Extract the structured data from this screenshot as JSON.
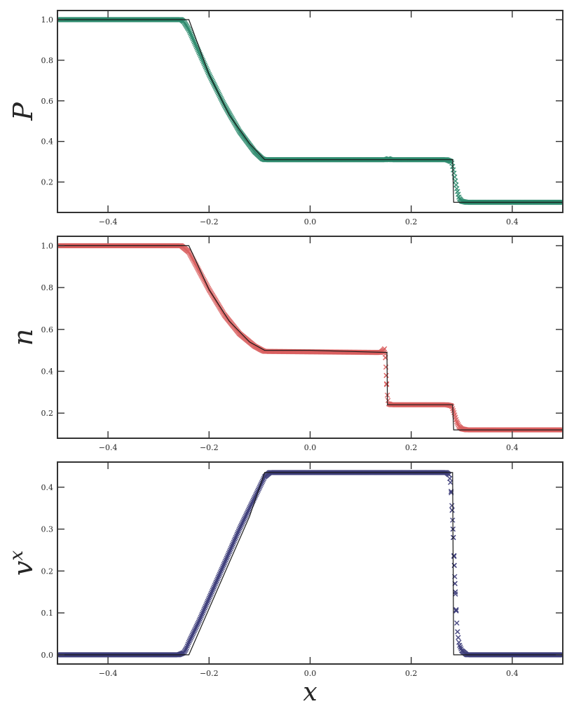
{
  "chart_data": [
    {
      "type": "scatter",
      "ylabel": "P",
      "xlabel": "",
      "xlim": [
        -0.5,
        0.5
      ],
      "ylim": [
        0.05,
        1.045
      ],
      "grid": false,
      "xticks": [
        -0.4,
        -0.2,
        0.0,
        0.2,
        0.4
      ],
      "xtick_labels": [
        "−0.4",
        "−0.2",
        "0.0",
        "0.2",
        "0.4"
      ],
      "yticks": [
        0.2,
        0.4,
        0.6,
        0.8,
        1.0
      ],
      "ytick_labels": [
        "0.2",
        "0.4",
        "0.6",
        "0.8",
        "1.0"
      ],
      "color": "#2e8b6e",
      "exact_color": "#1a1a1a",
      "exact": {
        "x": [
          -0.5,
          -0.24,
          -0.2,
          -0.16,
          -0.12,
          -0.09,
          0.0,
          0.282,
          0.284,
          0.5
        ],
        "y": [
          1.0,
          1.0,
          0.73,
          0.53,
          0.39,
          0.31,
          0.31,
          0.31,
          0.1,
          0.1
        ]
      },
      "numerical": {
        "x": [
          -0.5,
          -0.255,
          -0.25,
          -0.24,
          -0.22,
          -0.2,
          -0.17,
          -0.14,
          -0.11,
          -0.095,
          -0.09,
          0.15,
          0.155,
          0.16,
          0.27,
          0.28,
          0.285,
          0.29,
          0.295,
          0.3,
          0.31,
          0.5
        ],
        "y": [
          1.0,
          1.0,
          0.99,
          0.95,
          0.84,
          0.73,
          0.58,
          0.45,
          0.35,
          0.315,
          0.31,
          0.31,
          0.315,
          0.31,
          0.31,
          0.3,
          0.24,
          0.17,
          0.12,
          0.105,
          0.1,
          0.1
        ]
      }
    },
    {
      "type": "scatter",
      "ylabel": "n",
      "xlabel": "",
      "xlim": [
        -0.5,
        0.5
      ],
      "ylim": [
        0.08,
        1.045
      ],
      "grid": false,
      "xticks": [
        -0.4,
        -0.2,
        0.0,
        0.2,
        0.4
      ],
      "xtick_labels": [
        "−0.4",
        "−0.2",
        "0.0",
        "0.2",
        "0.4"
      ],
      "yticks": [
        0.2,
        0.4,
        0.6,
        0.8,
        1.0
      ],
      "ytick_labels": [
        "0.2",
        "0.4",
        "0.6",
        "0.8",
        "1.0"
      ],
      "color": "#d95f5f",
      "exact_color": "#1a1a1a",
      "exact": {
        "x": [
          -0.5,
          -0.24,
          -0.2,
          -0.16,
          -0.12,
          -0.09,
          0.0,
          0.152,
          0.153,
          0.282,
          0.284,
          0.5
        ],
        "y": [
          1.0,
          1.0,
          0.79,
          0.64,
          0.54,
          0.5,
          0.5,
          0.49,
          0.24,
          0.24,
          0.12,
          0.12
        ]
      },
      "numerical": {
        "x": [
          -0.5,
          -0.255,
          -0.25,
          -0.24,
          -0.22,
          -0.2,
          -0.17,
          -0.14,
          -0.11,
          -0.095,
          -0.09,
          0.13,
          0.14,
          0.145,
          0.148,
          0.15,
          0.152,
          0.155,
          0.16,
          0.27,
          0.28,
          0.285,
          0.29,
          0.295,
          0.3,
          0.31,
          0.5
        ],
        "y": [
          1.0,
          1.0,
          0.99,
          0.97,
          0.88,
          0.79,
          0.67,
          0.58,
          0.52,
          0.5,
          0.495,
          0.49,
          0.49,
          0.5,
          0.51,
          0.42,
          0.3,
          0.245,
          0.24,
          0.24,
          0.235,
          0.2,
          0.16,
          0.135,
          0.125,
          0.12,
          0.12
        ]
      }
    },
    {
      "type": "scatter",
      "ylabel": "v^x",
      "xlabel": "x",
      "xlim": [
        -0.5,
        0.5
      ],
      "ylim": [
        -0.022,
        0.46
      ],
      "grid": false,
      "xticks": [
        -0.4,
        -0.2,
        0.0,
        0.2,
        0.4
      ],
      "xtick_labels": [
        "−0.4",
        "−0.2",
        "0.0",
        "0.2",
        "0.4"
      ],
      "yticks": [
        0.0,
        0.1,
        0.2,
        0.3,
        0.4
      ],
      "ytick_labels": [
        "0.0",
        "0.1",
        "0.2",
        "0.3",
        "0.4"
      ],
      "color": "#3d3d7a",
      "exact_color": "#1a1a1a",
      "exact": {
        "x": [
          -0.5,
          -0.24,
          -0.2,
          -0.16,
          -0.12,
          -0.09,
          0.0,
          0.282,
          0.284,
          0.5
        ],
        "y": [
          0.0,
          0.0,
          0.11,
          0.22,
          0.33,
          0.435,
          0.435,
          0.435,
          0.0,
          0.0
        ]
      },
      "numerical": {
        "x": [
          -0.5,
          -0.26,
          -0.25,
          -0.245,
          -0.24,
          -0.22,
          -0.2,
          -0.18,
          -0.16,
          -0.14,
          -0.12,
          -0.1,
          -0.09,
          -0.08,
          0.1,
          0.2,
          0.27,
          0.275,
          0.278,
          0.28,
          0.282,
          0.284,
          0.286,
          0.288,
          0.29,
          0.292,
          0.295,
          0.3,
          0.31,
          0.5
        ],
        "y": [
          0.0,
          0.0,
          0.005,
          0.015,
          0.03,
          0.08,
          0.135,
          0.19,
          0.245,
          0.3,
          0.35,
          0.4,
          0.425,
          0.435,
          0.435,
          0.435,
          0.435,
          0.43,
          0.41,
          0.37,
          0.32,
          0.26,
          0.19,
          0.13,
          0.08,
          0.05,
          0.025,
          0.01,
          0.0,
          0.0
        ]
      }
    }
  ]
}
